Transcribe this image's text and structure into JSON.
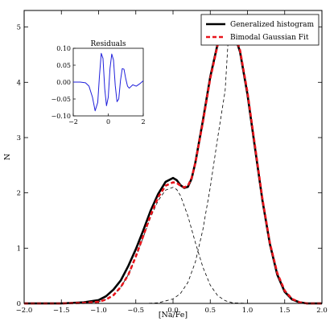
{
  "chart_data": [
    {
      "type": "line",
      "xlabel": "[Na/Fe]",
      "ylabel": "N",
      "xlim": [
        -2.0,
        2.0
      ],
      "ylim": [
        0,
        5.3
      ],
      "x_ticks": [
        "−2.0",
        "−1.5",
        "−1.0",
        "−0.5",
        "0.0",
        "0.5",
        "1.0",
        "1.5",
        "2.0"
      ],
      "y_ticks": [
        "0",
        "1",
        "2",
        "3",
        "4",
        "5"
      ],
      "grid": false,
      "legend_position": "top-right",
      "series": [
        {
          "name": "Generalized histogram",
          "style": "solid-thick",
          "color": "#000000",
          "x": [
            -2.0,
            -1.5,
            -1.2,
            -1.0,
            -0.9,
            -0.8,
            -0.7,
            -0.6,
            -0.5,
            -0.4,
            -0.3,
            -0.2,
            -0.1,
            0.0,
            0.05,
            0.1,
            0.15,
            0.2,
            0.25,
            0.3,
            0.4,
            0.5,
            0.6,
            0.7,
            0.75,
            0.8,
            0.9,
            1.0,
            1.1,
            1.2,
            1.3,
            1.4,
            1.5,
            1.6,
            1.7,
            1.8,
            2.0
          ],
          "y": [
            0.0,
            0.0,
            0.02,
            0.06,
            0.13,
            0.25,
            0.42,
            0.68,
            0.98,
            1.32,
            1.68,
            1.98,
            2.2,
            2.27,
            2.23,
            2.14,
            2.09,
            2.11,
            2.26,
            2.55,
            3.3,
            4.1,
            4.7,
            5.0,
            5.03,
            4.97,
            4.55,
            3.78,
            2.82,
            1.87,
            1.08,
            0.52,
            0.21,
            0.07,
            0.02,
            0.0,
            0.0
          ]
        },
        {
          "name": "Bimodal Gaussian Fit",
          "style": "dashed-thick",
          "color": "#e8141b",
          "x": [
            -2.0,
            -1.5,
            -1.2,
            -1.0,
            -0.9,
            -0.8,
            -0.7,
            -0.6,
            -0.5,
            -0.4,
            -0.3,
            -0.2,
            -0.1,
            0.0,
            0.05,
            0.1,
            0.15,
            0.2,
            0.25,
            0.3,
            0.4,
            0.5,
            0.6,
            0.7,
            0.75,
            0.8,
            0.9,
            1.0,
            1.1,
            1.2,
            1.3,
            1.4,
            1.5,
            1.6,
            1.7,
            1.8,
            2.0
          ],
          "y": [
            0.0,
            0.0,
            0.01,
            0.03,
            0.07,
            0.15,
            0.3,
            0.52,
            0.85,
            1.22,
            1.6,
            1.92,
            2.13,
            2.19,
            2.18,
            2.13,
            2.1,
            2.13,
            2.27,
            2.54,
            3.27,
            4.07,
            4.68,
            4.99,
            5.02,
            4.98,
            4.58,
            3.82,
            2.86,
            1.9,
            1.1,
            0.55,
            0.23,
            0.08,
            0.02,
            0.0,
            0.0
          ]
        },
        {
          "name": "",
          "style": "dashed-thin",
          "color": "#000000",
          "x": [
            -2.0,
            -1.5,
            -1.2,
            -1.0,
            -0.9,
            -0.8,
            -0.7,
            -0.6,
            -0.5,
            -0.4,
            -0.3,
            -0.2,
            -0.1,
            0.0,
            0.05,
            0.1,
            0.2,
            0.3,
            0.4,
            0.5,
            0.6,
            0.7,
            0.8,
            1.0,
            1.2
          ],
          "y": [
            0.0,
            0.0,
            0.01,
            0.03,
            0.07,
            0.15,
            0.3,
            0.52,
            0.84,
            1.2,
            1.56,
            1.86,
            2.05,
            2.1,
            2.06,
            1.95,
            1.58,
            1.1,
            0.66,
            0.33,
            0.14,
            0.05,
            0.01,
            0.0,
            0.0
          ]
        },
        {
          "name": "",
          "style": "dashed-thin",
          "color": "#000000",
          "x": [
            -0.4,
            -0.2,
            0.0,
            0.1,
            0.2,
            0.3,
            0.4,
            0.5,
            0.6,
            0.7,
            0.75,
            0.8,
            0.9,
            1.0,
            1.1,
            1.2,
            1.3,
            1.4,
            1.5,
            1.6,
            1.7,
            1.8,
            2.0
          ],
          "y": [
            0.0,
            0.01,
            0.08,
            0.18,
            0.38,
            0.75,
            1.33,
            2.1,
            3.0,
            3.85,
            4.98,
            4.93,
            4.55,
            3.82,
            2.86,
            1.9,
            1.1,
            0.55,
            0.23,
            0.08,
            0.02,
            0.0,
            0.0
          ]
        }
      ]
    },
    {
      "type": "line",
      "title": "Residuals",
      "xlim": [
        -2,
        2
      ],
      "ylim": [
        -0.1,
        0.1
      ],
      "x_ticks": [
        "−2",
        "0",
        "2"
      ],
      "y_ticks": [
        "0.10",
        "0.05",
        "0.00",
        "−0.05",
        "−0.10"
      ],
      "series": [
        {
          "name": "",
          "color": "#1f1fdb",
          "x": [
            -2.0,
            -1.6,
            -1.3,
            -1.1,
            -0.9,
            -0.75,
            -0.6,
            -0.5,
            -0.4,
            -0.3,
            -0.2,
            -0.1,
            0.0,
            0.1,
            0.2,
            0.3,
            0.4,
            0.5,
            0.6,
            0.7,
            0.8,
            0.9,
            1.0,
            1.1,
            1.2,
            1.4,
            1.6,
            1.8,
            2.0
          ],
          "y": [
            0.0,
            0.0,
            -0.002,
            -0.012,
            -0.045,
            -0.085,
            -0.06,
            0.02,
            0.085,
            0.07,
            -0.02,
            -0.07,
            -0.045,
            0.04,
            0.083,
            0.065,
            -0.01,
            -0.058,
            -0.05,
            0.005,
            0.04,
            0.038,
            0.01,
            -0.012,
            -0.018,
            -0.008,
            -0.012,
            -0.005,
            0.004
          ]
        }
      ]
    }
  ]
}
